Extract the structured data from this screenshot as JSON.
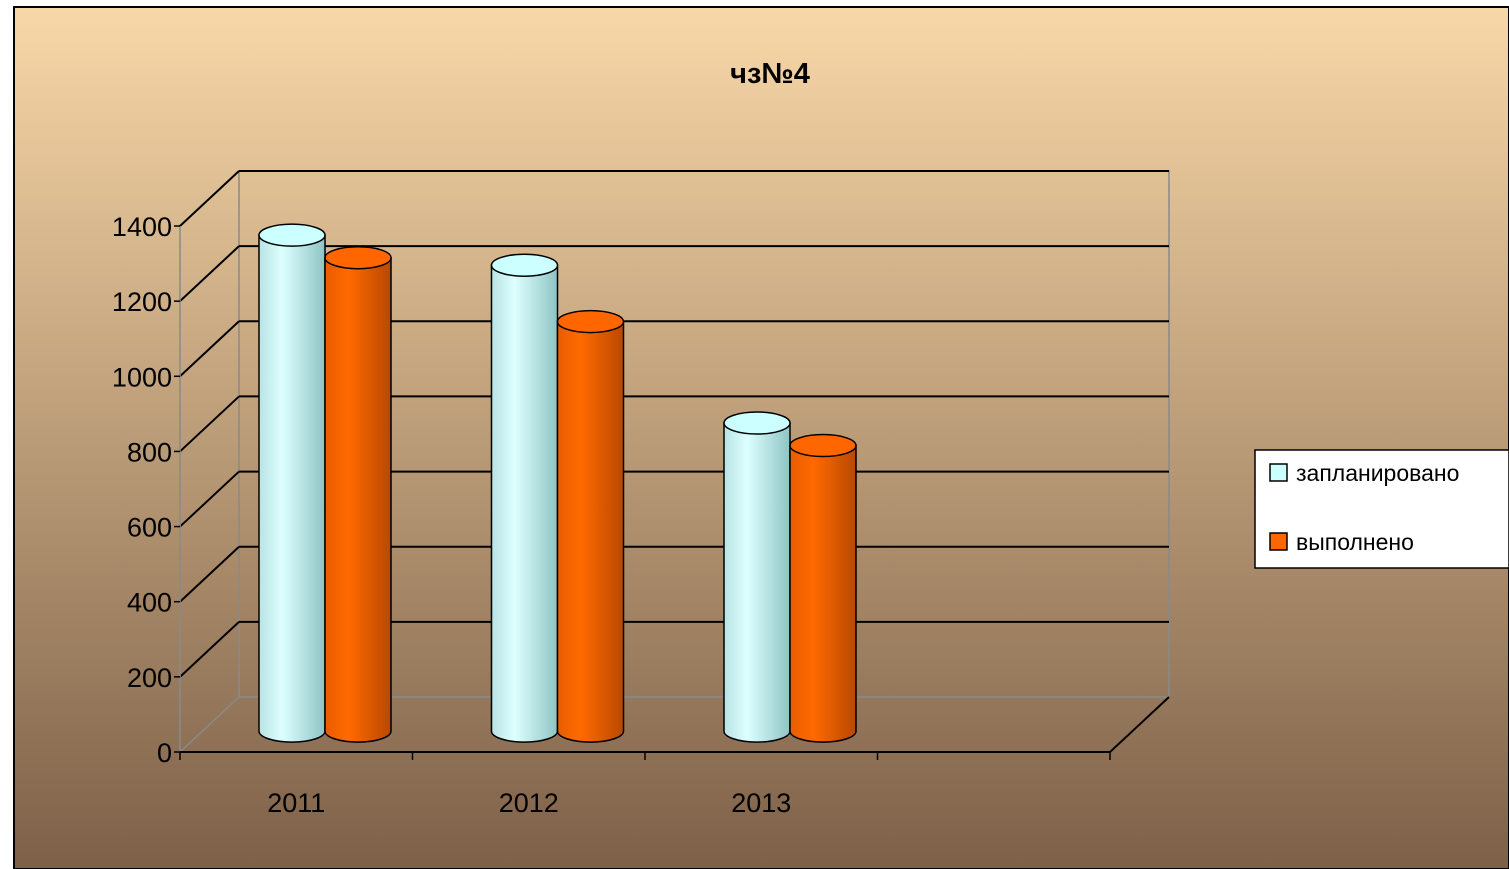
{
  "chart_data": {
    "type": "bar",
    "title": "чз№4",
    "categories": [
      "2011",
      "2012",
      "2013"
    ],
    "series": [
      {
        "name": "запланировано",
        "values": [
          1320,
          1240,
          820
        ],
        "color": "#ccffff"
      },
      {
        "name": "выполнено",
        "values": [
          1260,
          1090,
          760
        ],
        "color": "#ff6600"
      }
    ],
    "y_ticks": [
      "0",
      "200",
      "400",
      "600",
      "800",
      "1000",
      "1200",
      "1400"
    ],
    "ylim": [
      0,
      1400
    ],
    "grid": true,
    "legend_position": "right",
    "bar_shape": "3d-cylinder",
    "background_gradient": [
      "#f8d8a8",
      "#7d6048"
    ]
  }
}
